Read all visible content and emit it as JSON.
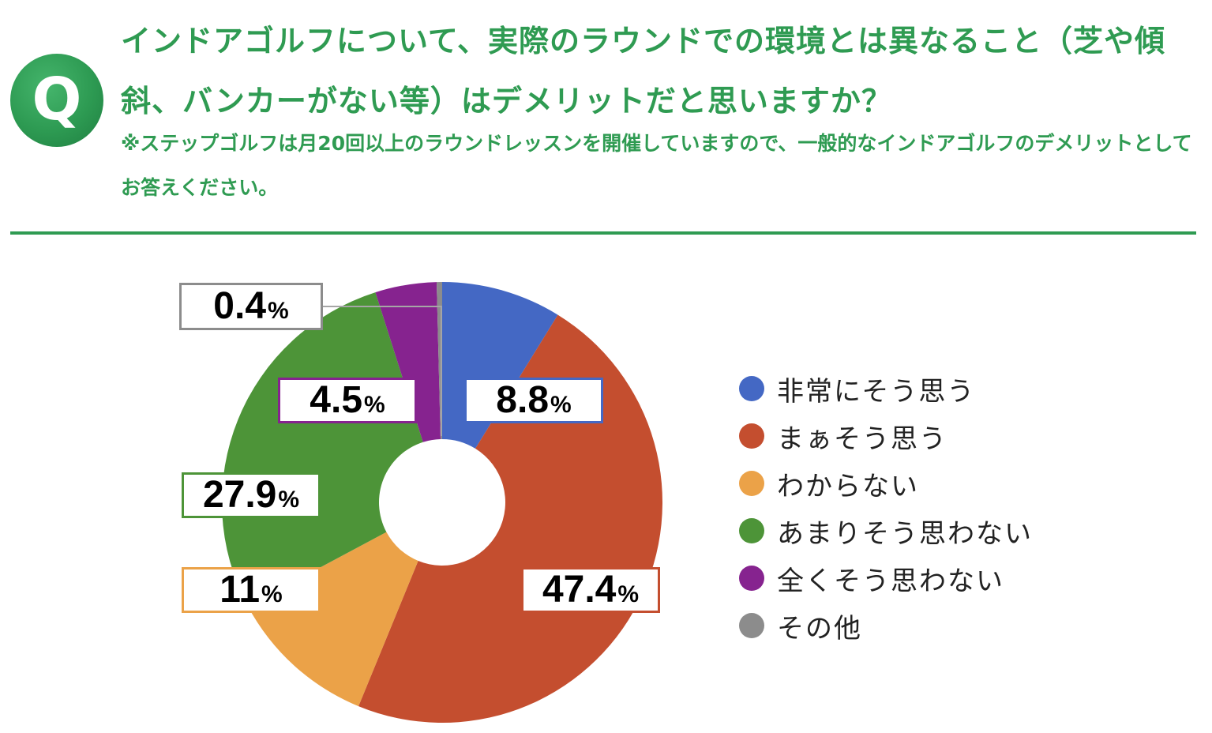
{
  "header": {
    "badge": "Q",
    "question": "インドアゴルフについて、実際のラウンドでの環境とは異なること（芝や傾斜、バンカーがない等）はデメリットだと思いますか？",
    "note": "※ステップゴルフは月20回以上のラウンドレッスンを開催していますので、一般的なインドアゴルフのデメリットとしてお答えください。"
  },
  "theme": {
    "accent": "#2f9b52"
  },
  "chart_data": {
    "type": "pie",
    "style": "donut",
    "categories": [
      "非常にそう思う",
      "まぁそう思う",
      "わからない",
      "あまりそう思わない",
      "全くそう思わない",
      "その他"
    ],
    "values": [
      8.8,
      47.4,
      11,
      27.9,
      4.5,
      0.4
    ],
    "value_labels": [
      "8.8",
      "47.4",
      "11",
      "27.9",
      "4.5",
      "0.4"
    ],
    "unit": "%",
    "colors": [
      "#4468c4",
      "#c44e2f",
      "#eba248",
      "#4d9438",
      "#86238f",
      "#8c8c8c"
    ],
    "legend_position": "right",
    "start_angle": "12 o'clock",
    "direction": "clockwise"
  }
}
